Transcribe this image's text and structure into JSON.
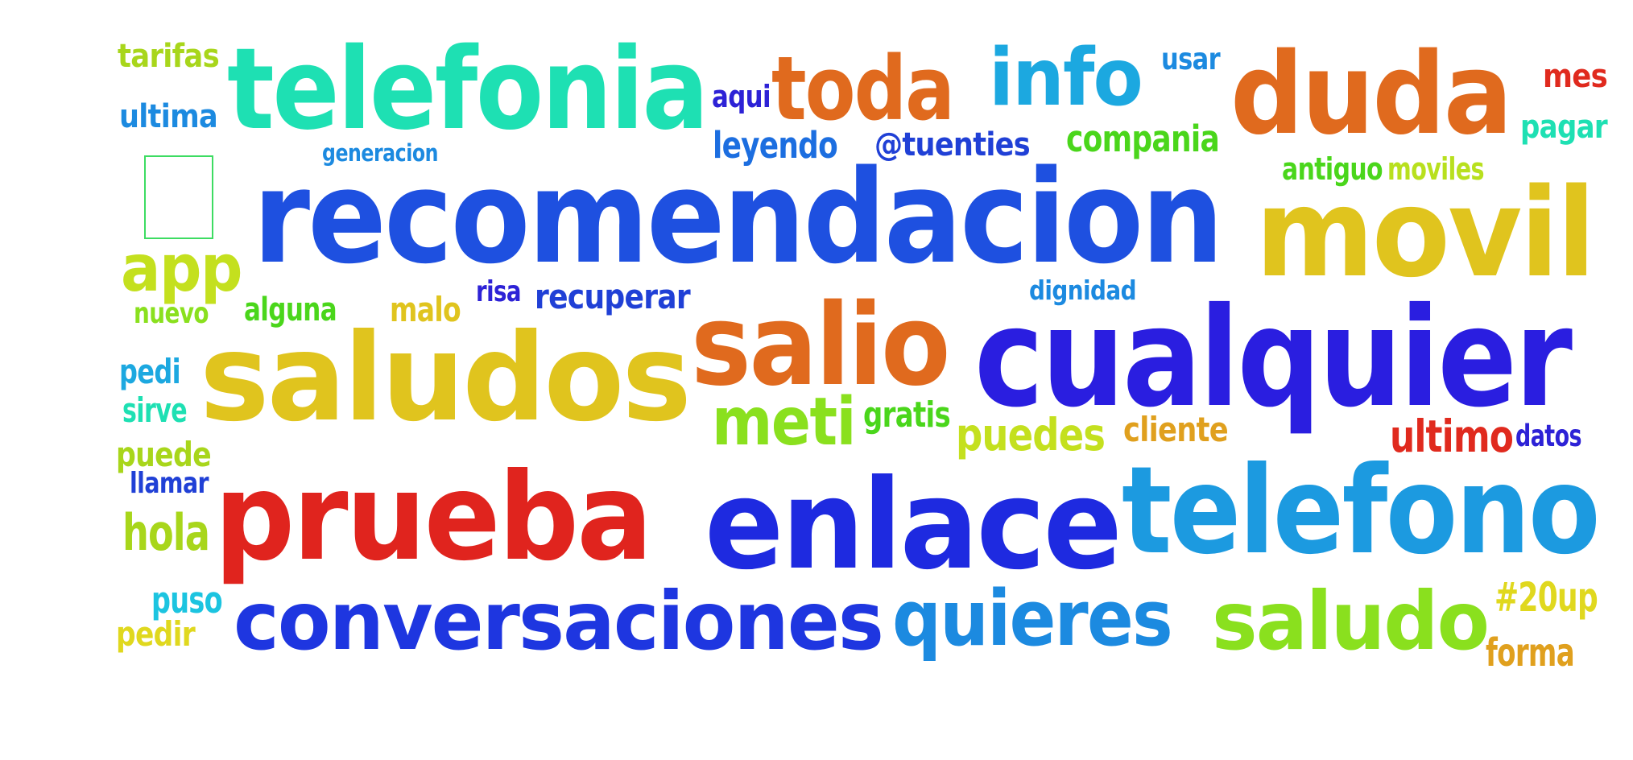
{
  "words": [
    {
      "id": "tarifas",
      "text": "tarifas",
      "color": "#a8d61b"
    },
    {
      "id": "telefonia",
      "text": "telefonia",
      "color": "#1ee0b3"
    },
    {
      "id": "aqui",
      "text": "aqui",
      "color": "#2d22d6"
    },
    {
      "id": "toda",
      "text": "toda",
      "color": "#e06a1e"
    },
    {
      "id": "info",
      "text": "info",
      "color": "#1ca8e0"
    },
    {
      "id": "usar",
      "text": "usar",
      "color": "#1c8ae0"
    },
    {
      "id": "duda",
      "text": "duda",
      "color": "#e06a1e"
    },
    {
      "id": "mes",
      "text": "mes",
      "color": "#e02a1e"
    },
    {
      "id": "ultima",
      "text": "ultima",
      "color": "#1c8ae0"
    },
    {
      "id": "leyendo",
      "text": "leyendo",
      "color": "#1c6ee0"
    },
    {
      "id": "tuenties",
      "text": "@tuenties",
      "color": "#2040d6"
    },
    {
      "id": "compania",
      "text": "compania",
      "color": "#4ad61b"
    },
    {
      "id": "pagar",
      "text": "pagar",
      "color": "#1ee0b3"
    },
    {
      "id": "generacion",
      "text": "generacion",
      "color": "#1c8ae0"
    },
    {
      "id": "antiguo",
      "text": "antiguo",
      "color": "#4ad61b"
    },
    {
      "id": "moviles",
      "text": "moviles",
      "color": "#b8e01e"
    },
    {
      "id": "recomendacion",
      "text": "recomendacion",
      "color": "#1e50e0"
    },
    {
      "id": "movil",
      "text": "movil",
      "color": "#e0c41e"
    },
    {
      "id": "app",
      "text": "app",
      "color": "#c4e01e"
    },
    {
      "id": "dignidad",
      "text": "dignidad",
      "color": "#1c8ae0"
    },
    {
      "id": "nuevo",
      "text": "nuevo",
      "color": "#8ae01e"
    },
    {
      "id": "alguna",
      "text": "alguna",
      "color": "#4ad61b"
    },
    {
      "id": "malo",
      "text": "malo",
      "color": "#e0c41e"
    },
    {
      "id": "risa",
      "text": "risa",
      "color": "#2d22d6"
    },
    {
      "id": "recuperar",
      "text": "recuperar",
      "color": "#2040d6"
    },
    {
      "id": "salio",
      "text": "salio",
      "color": "#e06a1e"
    },
    {
      "id": "cualquier",
      "text": "cualquier",
      "color": "#2a1ee0"
    },
    {
      "id": "saludos",
      "text": "saludos",
      "color": "#e0c41e"
    },
    {
      "id": "pedi",
      "text": "pedi",
      "color": "#1ca8e0"
    },
    {
      "id": "sirve",
      "text": "sirve",
      "color": "#1ee0b3"
    },
    {
      "id": "meti",
      "text": "meti",
      "color": "#8ae01e"
    },
    {
      "id": "gratis",
      "text": "gratis",
      "color": "#4ad61b"
    },
    {
      "id": "puedes",
      "text": "puedes",
      "color": "#c4e01e"
    },
    {
      "id": "cliente",
      "text": "cliente",
      "color": "#e0a01e"
    },
    {
      "id": "ultimo",
      "text": "ultimo",
      "color": "#e02a1e"
    },
    {
      "id": "datos",
      "text": "datos",
      "color": "#2d22d6"
    },
    {
      "id": "puede",
      "text": "puede",
      "color": "#a8d61b"
    },
    {
      "id": "llamar",
      "text": "llamar",
      "color": "#2040d6"
    },
    {
      "id": "prueba",
      "text": "prueba",
      "color": "#e0241e"
    },
    {
      "id": "enlace",
      "text": "enlace",
      "color": "#1e2ae0"
    },
    {
      "id": "telefono",
      "text": "telefono",
      "color": "#1c9ae0"
    },
    {
      "id": "hola",
      "text": "hola",
      "color": "#a8d61b"
    },
    {
      "id": "puso",
      "text": "puso",
      "color": "#1cc4e0"
    },
    {
      "id": "conversaciones",
      "text": "conversaciones",
      "color": "#1e36e0"
    },
    {
      "id": "quieres",
      "text": "quieres",
      "color": "#1c8ae0"
    },
    {
      "id": "saludo",
      "text": "saludo",
      "color": "#8ae01e"
    },
    {
      "id": "hashtag20up",
      "text": "#20up",
      "color": "#e0d81e"
    },
    {
      "id": "pedir",
      "text": "pedir",
      "color": "#e0d81e"
    },
    {
      "id": "forma",
      "text": "forma",
      "color": "#e0a01e"
    }
  ]
}
